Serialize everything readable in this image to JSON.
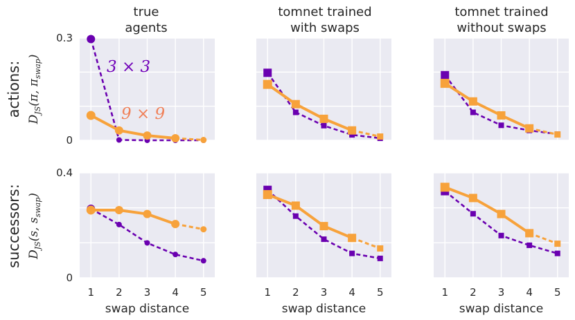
{
  "chart_data": {
    "type": "line",
    "layout": "2x3 grid of line plots",
    "x": [
      1,
      2,
      3,
      4,
      5
    ],
    "xlabel": "swap distance",
    "column_titles": [
      {
        "line1": "true",
        "line2": "agents"
      },
      {
        "line1": "tomnet trained",
        "line2": "with swaps"
      },
      {
        "line1": "tomnet trained",
        "line2": "without swaps"
      }
    ],
    "rows": [
      {
        "row_label": "actions:",
        "ylabel_text": "D",
        "ylabel_sub": "JS",
        "ylabel_args": "(π, π",
        "ylabel_args_sub": "swap",
        "ylabel_close": ")",
        "ylim": [
          0,
          0.3
        ],
        "yticks": [
          "0",
          "0.3"
        ],
        "panels": [
          {
            "series": [
              {
                "name": "3 × 3",
                "marker": "circle",
                "values": [
                  0.297,
                  0.001,
                  0.0,
                  0.0,
                  0.0
                ]
              },
              {
                "name": "9 × 9",
                "marker": "circle",
                "values": [
                  0.073,
                  0.029,
                  0.014,
                  0.006,
                  0.001
                ]
              }
            ]
          },
          {
            "series": [
              {
                "name": "3 × 3",
                "marker": "square",
                "values": [
                  0.198,
                  0.082,
                  0.043,
                  0.016,
                  0.006
                ]
              },
              {
                "name": "9 × 9",
                "marker": "square",
                "values": [
                  0.164,
                  0.106,
                  0.063,
                  0.029,
                  0.011
                ]
              }
            ]
          },
          {
            "series": [
              {
                "name": "3 × 3",
                "marker": "square",
                "values": [
                  0.191,
                  0.082,
                  0.044,
                  0.029,
                  0.018
                ]
              },
              {
                "name": "9 × 9",
                "marker": "square",
                "values": [
                  0.167,
                  0.114,
                  0.073,
                  0.035,
                  0.017
                ]
              }
            ]
          }
        ]
      },
      {
        "row_label": "successors:",
        "ylabel_text": "D",
        "ylabel_sub": "JS",
        "ylabel_args": "(s, s",
        "ylabel_args_sub": "swap",
        "ylabel_close": ")",
        "ylim": [
          0,
          0.4
        ],
        "yticks": [
          "0",
          "0.4"
        ],
        "panels": [
          {
            "series": [
              {
                "name": "3 × 3",
                "marker": "circle",
                "values": [
                  0.263,
                  0.203,
                  0.133,
                  0.089,
                  0.065
                ]
              },
              {
                "name": "9 × 9",
                "marker": "circle",
                "values": [
                  0.258,
                  0.258,
                  0.243,
                  0.205,
                  0.185
                ]
              }
            ]
          },
          {
            "series": [
              {
                "name": "3 × 3",
                "marker": "square",
                "values": [
                  0.335,
                  0.235,
                  0.147,
                  0.093,
                  0.074
                ]
              },
              {
                "name": "9 × 9",
                "marker": "square",
                "values": [
                  0.317,
                  0.275,
                  0.197,
                  0.152,
                  0.112
                ]
              }
            ]
          },
          {
            "series": [
              {
                "name": "3 × 3",
                "marker": "square",
                "values": [
                  0.33,
                  0.244,
                  0.161,
                  0.124,
                  0.093
                ]
              },
              {
                "name": "9 × 9",
                "marker": "square",
                "values": [
                  0.345,
                  0.304,
                  0.243,
                  0.17,
                  0.13
                ]
              }
            ]
          }
        ]
      }
    ],
    "annotations": [
      {
        "text": "3 × 3",
        "color": "#7000b8"
      },
      {
        "text": "9 × 9",
        "color": "#f08058"
      }
    ],
    "note": "Final segment (x=4 to 5) drawn dashed for the orange series.",
    "colors": {
      "purple": "#6a00b0",
      "orange": "#f7a23b",
      "panel_bg": "#eaeaf2",
      "grid": "#ffffff"
    }
  }
}
